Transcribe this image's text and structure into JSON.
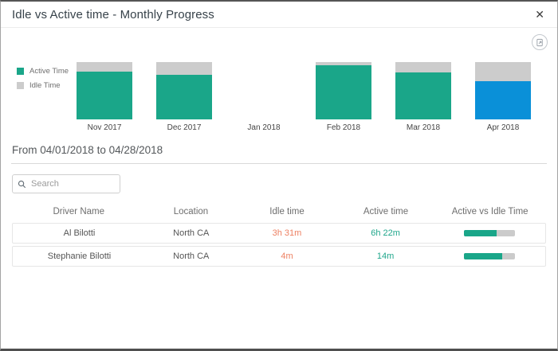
{
  "modal": {
    "title": "Idle vs Active time - Monthly Progress",
    "close_glyph": "✕"
  },
  "toolbar": {
    "export_icon": "export-chart-icon"
  },
  "colors": {
    "active": "#1aa689",
    "idle": "#cccccc",
    "selected_active": "#0a90d8",
    "idle_text": "#ed8062",
    "active_text": "#1fa68b"
  },
  "chart_data": {
    "type": "bar",
    "stacked": true,
    "title": "Idle vs Active time - Monthly Progress",
    "categories": [
      "Nov 2017",
      "Dec 2017",
      "Jan 2018",
      "Feb 2018",
      "Mar 2018",
      "Apr 2018"
    ],
    "series": [
      {
        "name": "Active Time",
        "values": [
          84,
          78,
          null,
          94,
          82,
          67
        ],
        "color": "#1aa689",
        "selected_color": "#0a90d8"
      },
      {
        "name": "Idle Time",
        "values": [
          16,
          22,
          null,
          6,
          18,
          33
        ],
        "color": "#cccccc"
      }
    ],
    "selected_index": 5,
    "ylim": [
      0,
      100
    ],
    "legend_position": "left",
    "grid": false
  },
  "section": {
    "date_range": "From 04/01/2018 to 04/28/2018"
  },
  "search": {
    "placeholder": "Search",
    "value": ""
  },
  "table": {
    "columns": [
      "Driver Name",
      "Location",
      "Idle time",
      "Active time",
      "Active vs Idle Time"
    ],
    "rows": [
      {
        "driver": "Al Bilotti",
        "location": "North CA",
        "idle": "3h 31m",
        "active": "6h 22m",
        "active_pct": 64
      },
      {
        "driver": "Stephanie Bilotti",
        "location": "North CA",
        "idle": "4m",
        "active": "14m",
        "active_pct": 76
      }
    ]
  }
}
